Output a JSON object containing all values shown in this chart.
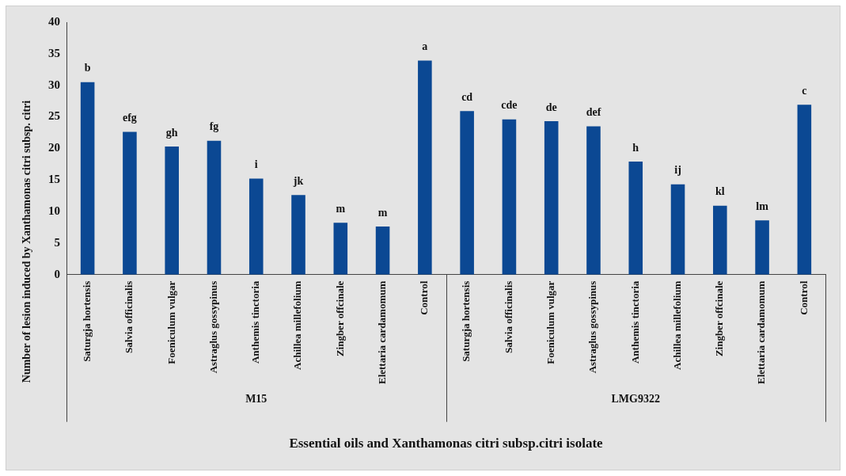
{
  "chart_data": {
    "type": "bar",
    "xlabel": "Essential oils and Xanthamonas citri subsp.citri isolate",
    "ylabel": "Number of lesion induced by Xanthamonas citri subsp. citri",
    "categories": [
      "Saturgja hortensis",
      "Salvia officinalis",
      "Foeniculum vulgar",
      "Astraglus gossypinus",
      "Anthemis tinctoria",
      "Achillea millefolium",
      "Zingber offcinale",
      "Elettaria cardamomum",
      "Control",
      "Saturgja hortensis",
      "Salvia officinalis",
      "Foeniculum vulgar",
      "Astraglus gossypinus",
      "Anthemis tinctoria",
      "Achillea millefolium",
      "Zingber offcinale",
      "Elettaria cardamomum",
      "Control"
    ],
    "values": [
      30.5,
      22.6,
      20.3,
      21.2,
      15.2,
      12.6,
      8.2,
      7.6,
      33.9,
      25.9,
      24.6,
      24.3,
      23.5,
      17.9,
      14.3,
      10.9,
      8.6,
      26.9
    ],
    "value_labels": [
      "b",
      "efg",
      "gh",
      "fg",
      "i",
      "jk",
      "m",
      "m",
      "a",
      "cd",
      "cde",
      "de",
      "def",
      "h",
      "ij",
      "kl",
      "lm",
      "c"
    ],
    "color": "#0b4893",
    "annotations": [
      "M15",
      "LMG9322"
    ],
    "ylim": [
      0,
      40
    ],
    "yticks": [
      0,
      5,
      10,
      15,
      20,
      25,
      30,
      35,
      40
    ],
    "grid": false,
    "legend": false
  }
}
